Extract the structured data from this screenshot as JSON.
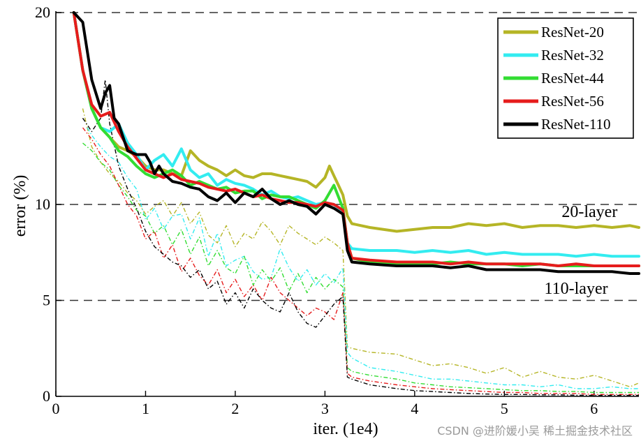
{
  "watermark": "CSDN @进阶媛小吴  稀土掘金技术社区",
  "chart_data": {
    "type": "line",
    "title": "",
    "xlabel": "iter. (1e4)",
    "ylabel": "error (%)",
    "xlim": [
      0,
      6.5
    ],
    "ylim": [
      0,
      20
    ],
    "xticks": [
      0,
      1,
      2,
      3,
      4,
      5,
      6
    ],
    "yticks": [
      0,
      5,
      10,
      20
    ],
    "grid": "dashed horizontal at 5, 10, 20",
    "legend_position": "top-right",
    "annotations": [
      {
        "text": "20-layer",
        "x": 5.95,
        "y": 9.35
      },
      {
        "text": "110-layer",
        "x": 5.8,
        "y": 5.35
      }
    ],
    "series": [
      {
        "name": "ResNet-20",
        "color": "#b5b526",
        "test_x": [
          0.2,
          0.3,
          0.4,
          0.5,
          0.6,
          0.7,
          0.8,
          0.9,
          1.0,
          1.1,
          1.2,
          1.3,
          1.4,
          1.5,
          1.6,
          1.7,
          1.8,
          1.9,
          2.0,
          2.1,
          2.2,
          2.3,
          2.4,
          2.5,
          2.6,
          2.7,
          2.8,
          2.9,
          3.0,
          3.05,
          3.1,
          3.15,
          3.2,
          3.25,
          3.3,
          3.5,
          3.8,
          4.0,
          4.2,
          4.4,
          4.6,
          4.8,
          5.0,
          5.2,
          5.4,
          5.6,
          5.8,
          6.0,
          6.2,
          6.4,
          6.5
        ],
        "test_y": [
          20,
          17,
          15,
          14,
          13.5,
          13,
          12.8,
          12.5,
          12,
          11.8,
          11.8,
          11.6,
          11.5,
          12.8,
          12.3,
          12,
          11.8,
          11.5,
          11.8,
          11.5,
          11.4,
          11.6,
          11.6,
          11.5,
          11.4,
          11.3,
          11.2,
          10.9,
          11.4,
          12,
          11.5,
          11.0,
          10.5,
          9.4,
          9.0,
          8.8,
          8.6,
          8.7,
          8.8,
          8.8,
          9.0,
          8.9,
          9.0,
          8.8,
          8.9,
          8.9,
          8.8,
          8.9,
          8.8,
          8.9,
          8.8
        ],
        "train_x": [
          0.3,
          0.4,
          0.5,
          0.6,
          0.7,
          0.8,
          0.9,
          1.0,
          1.1,
          1.2,
          1.3,
          1.4,
          1.5,
          1.6,
          1.7,
          1.8,
          1.9,
          2.0,
          2.1,
          2.2,
          2.3,
          2.4,
          2.5,
          2.6,
          2.7,
          2.8,
          2.9,
          3.0,
          3.1,
          3.2,
          3.25,
          3.3,
          3.5,
          3.8,
          4.0,
          4.2,
          4.4,
          4.6,
          4.8,
          5.0,
          5.2,
          5.4,
          5.6,
          5.8,
          6.0,
          6.2,
          6.4,
          6.5
        ],
        "train_y": [
          15,
          13,
          12.2,
          11.6,
          11.2,
          10.6,
          10.2,
          9.5,
          9.9,
          10.2,
          9.4,
          10.1,
          9.0,
          9.6,
          8.4,
          8.0,
          8.9,
          7.8,
          8.5,
          8.2,
          9.1,
          8.6,
          7.9,
          8.9,
          8.5,
          8.2,
          7.9,
          8.3,
          8.0,
          7.6,
          2.6,
          2.5,
          2.3,
          2.2,
          1.9,
          1.6,
          1.7,
          1.5,
          1.2,
          1.5,
          1.0,
          1.3,
          1.0,
          0.9,
          1.1,
          0.8,
          0.5,
          0.7
        ]
      },
      {
        "name": "ResNet-32",
        "color": "#33ecf0",
        "test_x": [
          0.2,
          0.3,
          0.4,
          0.5,
          0.6,
          0.7,
          0.8,
          0.9,
          1.0,
          1.1,
          1.2,
          1.3,
          1.4,
          1.5,
          1.6,
          1.7,
          1.8,
          1.9,
          2.0,
          2.1,
          2.2,
          2.3,
          2.4,
          2.5,
          2.6,
          2.7,
          2.8,
          2.9,
          3.0,
          3.1,
          3.2,
          3.25,
          3.3,
          3.5,
          3.8,
          4.0,
          4.2,
          4.4,
          4.6,
          4.8,
          5.0,
          5.2,
          5.4,
          5.6,
          5.8,
          6.0,
          6.2,
          6.4,
          6.5
        ],
        "test_y": [
          20,
          17,
          15,
          14,
          13.8,
          14.2,
          13.2,
          12.6,
          11.8,
          12.3,
          12.6,
          12.0,
          12.9,
          11.8,
          11.4,
          11.6,
          11.0,
          11.3,
          11.1,
          11.0,
          10.8,
          10.5,
          10.7,
          10.4,
          10.3,
          10.4,
          10.2,
          10.0,
          10.1,
          10.0,
          9.6,
          8.0,
          7.7,
          7.6,
          7.6,
          7.5,
          7.6,
          7.5,
          7.6,
          7.4,
          7.5,
          7.4,
          7.4,
          7.4,
          7.3,
          7.4,
          7.3,
          7.3,
          7.3
        ],
        "train_x": [
          0.35,
          0.4,
          0.5,
          0.6,
          0.7,
          0.8,
          0.9,
          1.0,
          1.1,
          1.2,
          1.3,
          1.4,
          1.5,
          1.6,
          1.7,
          1.8,
          1.9,
          2.0,
          2.1,
          2.2,
          2.3,
          2.4,
          2.5,
          2.6,
          2.7,
          2.8,
          2.9,
          3.0,
          3.1,
          3.2,
          3.25,
          3.3,
          3.5,
          3.8,
          4.0,
          4.2,
          4.4,
          4.6,
          4.8,
          5.0,
          5.2,
          5.4,
          5.6,
          5.8,
          6.0,
          6.2,
          6.4,
          6.5
        ],
        "train_y": [
          14.0,
          13.6,
          13.0,
          12.5,
          12.2,
          11.4,
          10.8,
          9.2,
          9.8,
          8.7,
          9.4,
          9.5,
          8.2,
          9.3,
          7.3,
          8.5,
          6.8,
          7.1,
          7.3,
          6.5,
          6.1,
          6.2,
          7.7,
          6.7,
          6.0,
          6.6,
          5.8,
          6.4,
          5.9,
          6.7,
          2.3,
          2.0,
          1.5,
          1.3,
          1.1,
          0.9,
          0.9,
          0.8,
          0.7,
          0.6,
          0.6,
          0.5,
          0.6,
          0.4,
          0.4,
          0.5,
          0.4,
          0.4
        ]
      },
      {
        "name": "ResNet-44",
        "color": "#33dd33",
        "test_x": [
          0.2,
          0.3,
          0.4,
          0.5,
          0.6,
          0.7,
          0.8,
          0.9,
          1.0,
          1.1,
          1.2,
          1.3,
          1.4,
          1.5,
          1.6,
          1.7,
          1.8,
          1.9,
          2.0,
          2.1,
          2.2,
          2.3,
          2.4,
          2.5,
          2.6,
          2.7,
          2.8,
          2.9,
          3.0,
          3.05,
          3.1,
          3.15,
          3.2,
          3.25,
          3.3,
          3.5,
          3.8,
          4.0,
          4.2,
          4.4,
          4.6,
          4.8,
          5.0,
          5.2,
          5.4,
          5.6,
          5.8,
          6.0,
          6.2,
          6.4,
          6.5
        ],
        "test_y": [
          20,
          17,
          15,
          14,
          13.5,
          12.8,
          12.5,
          12.0,
          11.6,
          11.4,
          11.6,
          11.8,
          11.5,
          11.0,
          11.2,
          11.0,
          10.8,
          10.9,
          10.6,
          10.7,
          10.7,
          10.3,
          10.5,
          10.4,
          10.4,
          10.2,
          10.0,
          9.8,
          10.2,
          10.6,
          11.0,
          10.4,
          9.8,
          8.0,
          7.2,
          7.0,
          6.9,
          6.9,
          6.9,
          7.0,
          6.9,
          6.9,
          6.9,
          6.8,
          6.9,
          6.8,
          6.8,
          6.8,
          6.8,
          6.8,
          6.8
        ],
        "train_x": [
          0.3,
          0.4,
          0.5,
          0.6,
          0.7,
          0.8,
          0.9,
          1.0,
          1.1,
          1.2,
          1.3,
          1.4,
          1.5,
          1.6,
          1.7,
          1.8,
          1.9,
          2.0,
          2.1,
          2.2,
          2.3,
          2.4,
          2.5,
          2.6,
          2.7,
          2.8,
          2.9,
          3.0,
          3.1,
          3.2,
          3.25,
          3.3,
          3.5,
          3.8,
          4.0,
          4.2,
          4.4,
          4.6,
          4.8,
          5.0,
          5.2,
          5.4,
          5.6,
          5.8,
          6.0,
          6.2,
          6.4,
          6.5
        ],
        "train_y": [
          13.2,
          12.8,
          12.2,
          11.8,
          11.0,
          10.4,
          9.7,
          9.4,
          8.5,
          8.9,
          7.9,
          8.7,
          7.4,
          8.3,
          6.8,
          7.6,
          6.7,
          6.4,
          7.3,
          5.8,
          6.6,
          6.0,
          6.7,
          5.5,
          6.4,
          5.4,
          6.2,
          5.6,
          6.1,
          5.7,
          1.5,
          1.3,
          1.1,
          0.9,
          0.7,
          0.6,
          0.5,
          0.45,
          0.4,
          0.35,
          0.3,
          0.3,
          0.25,
          0.25,
          0.2,
          0.2,
          0.2,
          0.2
        ]
      },
      {
        "name": "ResNet-56",
        "color": "#e61c1c",
        "test_x": [
          0.2,
          0.3,
          0.4,
          0.5,
          0.6,
          0.7,
          0.8,
          0.9,
          1.0,
          1.1,
          1.2,
          1.3,
          1.4,
          1.5,
          1.6,
          1.7,
          1.8,
          1.9,
          2.0,
          2.1,
          2.2,
          2.3,
          2.4,
          2.5,
          2.6,
          2.7,
          2.8,
          2.9,
          3.0,
          3.1,
          3.2,
          3.25,
          3.3,
          3.5,
          3.8,
          4.0,
          4.2,
          4.4,
          4.6,
          4.8,
          5.0,
          5.2,
          5.4,
          5.6,
          5.8,
          6.0,
          6.2,
          6.4,
          6.5
        ],
        "test_y": [
          20,
          17,
          15.2,
          14.6,
          14.8,
          13.8,
          13.0,
          12.4,
          11.8,
          11.6,
          11.4,
          11.6,
          11.3,
          11.2,
          11.1,
          10.9,
          10.8,
          10.7,
          10.8,
          10.6,
          10.4,
          10.5,
          10.3,
          10.2,
          10.1,
          10.1,
          10.0,
          9.9,
          10.1,
          10.0,
          9.7,
          8.0,
          7.2,
          7.1,
          7.0,
          7.0,
          7.0,
          6.9,
          7.0,
          6.9,
          6.9,
          6.9,
          6.9,
          6.8,
          6.9,
          6.8,
          6.8,
          6.8,
          6.8
        ],
        "train_x": [
          0.3,
          0.4,
          0.5,
          0.6,
          0.7,
          0.8,
          0.9,
          1.0,
          1.1,
          1.2,
          1.3,
          1.4,
          1.5,
          1.6,
          1.7,
          1.8,
          1.9,
          2.0,
          2.1,
          2.2,
          2.3,
          2.4,
          2.5,
          2.6,
          2.7,
          2.8,
          2.9,
          3.0,
          3.1,
          3.2,
          3.25,
          3.3,
          3.5,
          3.8,
          4.0,
          4.2,
          4.4,
          4.6,
          4.8,
          5.0,
          5.2,
          5.4,
          5.6,
          5.8,
          6.0,
          6.2,
          6.4,
          6.5
        ],
        "train_y": [
          14.0,
          13.4,
          12.6,
          12.0,
          11.0,
          10.0,
          9.4,
          8.2,
          8.6,
          7.2,
          7.9,
          6.5,
          7.2,
          6.3,
          5.8,
          6.6,
          5.4,
          6.1,
          5.2,
          5.8,
          5.0,
          6.2,
          5.4,
          5.0,
          4.6,
          4.2,
          4.6,
          4.4,
          4.0,
          5.4,
          1.2,
          1.0,
          0.8,
          0.6,
          0.5,
          0.4,
          0.35,
          0.3,
          0.25,
          0.2,
          0.2,
          0.15,
          0.15,
          0.15,
          0.1,
          0.1,
          0.1,
          0.1
        ]
      },
      {
        "name": "ResNet-110",
        "color": "#000000",
        "test_x": [
          0.2,
          0.3,
          0.4,
          0.5,
          0.55,
          0.6,
          0.65,
          0.7,
          0.8,
          0.9,
          1.0,
          1.05,
          1.1,
          1.15,
          1.2,
          1.3,
          1.4,
          1.5,
          1.6,
          1.7,
          1.8,
          1.9,
          2.0,
          2.1,
          2.2,
          2.3,
          2.4,
          2.5,
          2.6,
          2.7,
          2.8,
          2.9,
          3.0,
          3.1,
          3.2,
          3.25,
          3.3,
          3.5,
          3.8,
          4.0,
          4.2,
          4.4,
          4.6,
          4.8,
          5.0,
          5.2,
          5.4,
          5.6,
          5.8,
          6.0,
          6.2,
          6.4,
          6.5
        ],
        "test_y": [
          20,
          19.5,
          16.5,
          15.0,
          15.8,
          16.2,
          14.5,
          14.2,
          12.8,
          12.6,
          12.6,
          12.2,
          11.6,
          12.0,
          11.6,
          11.2,
          11.1,
          10.9,
          10.8,
          10.4,
          10.2,
          10.6,
          10.1,
          10.6,
          10.4,
          10.8,
          10.3,
          10.0,
          10.2,
          10.0,
          9.9,
          9.5,
          10.0,
          9.8,
          9.5,
          7.6,
          7.0,
          6.9,
          6.8,
          6.8,
          6.8,
          6.7,
          6.8,
          6.6,
          6.6,
          6.6,
          6.6,
          6.5,
          6.5,
          6.5,
          6.5,
          6.4,
          6.4
        ],
        "train_x": [
          0.3,
          0.4,
          0.5,
          0.55,
          0.6,
          0.7,
          0.8,
          0.9,
          1.0,
          1.1,
          1.2,
          1.3,
          1.4,
          1.5,
          1.6,
          1.7,
          1.8,
          1.9,
          2.0,
          2.1,
          2.2,
          2.3,
          2.4,
          2.5,
          2.6,
          2.7,
          2.8,
          2.9,
          3.0,
          3.1,
          3.2,
          3.25,
          3.3,
          3.5,
          3.8,
          4.0,
          4.2,
          4.4,
          4.6,
          4.8,
          5.0,
          5.2,
          5.4,
          5.6,
          5.8,
          6.0,
          6.2,
          6.4,
          6.5
        ],
        "train_y": [
          14.5,
          13.8,
          14.5,
          16.5,
          14.2,
          12.0,
          10.8,
          9.8,
          8.6,
          7.8,
          7.4,
          7.0,
          6.8,
          6.2,
          6.6,
          5.6,
          6.0,
          4.8,
          5.4,
          4.6,
          5.6,
          5.0,
          4.6,
          4.4,
          5.4,
          4.4,
          3.8,
          3.6,
          4.2,
          4.8,
          5.2,
          1.0,
          0.9,
          0.6,
          0.4,
          0.3,
          0.25,
          0.2,
          0.15,
          0.12,
          0.1,
          0.1,
          0.08,
          0.08,
          0.06,
          0.05,
          0.05,
          0.05,
          0.05
        ]
      }
    ]
  }
}
